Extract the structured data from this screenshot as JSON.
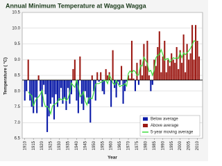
{
  "chart_data": {
    "type": "bar",
    "title": "Annual Minimum Temperature at Wagga Wagga",
    "x_label": "Year",
    "y_label": "Temperature ( °C)",
    "baseline": 8.35,
    "x": [
      1910,
      1911,
      1912,
      1913,
      1914,
      1915,
      1916,
      1917,
      1918,
      1919,
      1920,
      1921,
      1922,
      1923,
      1924,
      1925,
      1926,
      1927,
      1928,
      1929,
      1930,
      1931,
      1932,
      1933,
      1934,
      1935,
      1936,
      1937,
      1938,
      1939,
      1940,
      1941,
      1942,
      1943,
      1944,
      1945,
      1946,
      1947,
      1948,
      1949,
      1950,
      1951,
      1952,
      1953,
      1954,
      1955,
      1956,
      1957,
      1958,
      1959,
      1960,
      1961,
      1962,
      1963,
      1964,
      1965,
      1966,
      1967,
      1968,
      1969,
      1970,
      1971,
      1972,
      1973,
      1974,
      1975,
      1976,
      1977,
      1978,
      1979,
      1980,
      1981,
      1982,
      1983,
      1984,
      1985,
      1986,
      1987,
      1988,
      1989,
      1990,
      1991,
      1992,
      1993,
      1994,
      1995,
      1996,
      1997,
      1998,
      1999,
      2000,
      2001,
      2002,
      2003,
      2004,
      2005,
      2006,
      2007,
      2008,
      2009,
      2010,
      2011
    ],
    "series": [
      {
        "name": "Below average",
        "color": "#0a1aa8",
        "kind": "bar",
        "values": [
          7.7,
          8.0,
          null,
          7.7,
          7.5,
          7.3,
          7.8,
          7.3,
          null,
          8.0,
          7.5,
          8.2,
          7.9,
          6.7,
          7.2,
          7.6,
          7.8,
          7.1,
          7.9,
          7.5,
          7.7,
          8.1,
          7.6,
          7.8,
          7.4,
          8.1,
          7.6,
          7.9,
          null,
          null,
          7.7,
          7.3,
          null,
          7.6,
          7.4,
          8.0,
          7.8,
          7.6,
          7.0,
          null,
          8.0,
          7.7,
          null,
          8.3,
          null,
          8.0,
          7.9,
          null,
          null,
          null,
          7.5,
          null,
          8.1,
          7.8,
          8.3,
          8.2,
          null,
          7.6,
          8.0,
          8.3,
          null,
          null,
          null,
          null,
          8.0,
          null,
          8.2,
          null,
          null,
          null,
          null,
          null,
          null,
          8.0,
          8.2,
          null,
          null,
          null,
          null,
          null,
          null,
          null,
          null,
          null,
          null,
          null,
          null,
          null,
          null,
          null,
          null,
          null,
          null,
          null,
          null,
          null,
          null,
          null,
          null,
          null,
          null,
          null
        ]
      },
      {
        "name": "Above average",
        "color": "#9c1a14",
        "kind": "bar",
        "values": [
          null,
          null,
          9.0,
          null,
          null,
          null,
          null,
          null,
          8.5,
          null,
          null,
          null,
          null,
          null,
          null,
          null,
          null,
          null,
          null,
          null,
          null,
          null,
          null,
          null,
          null,
          null,
          null,
          null,
          8.7,
          9.0,
          null,
          null,
          9.1,
          null,
          null,
          null,
          null,
          null,
          null,
          8.5,
          null,
          null,
          8.6,
          null,
          8.6,
          null,
          null,
          8.7,
          8.5,
          8.6,
          null,
          9.3,
          null,
          null,
          null,
          null,
          8.8,
          null,
          null,
          null,
          8.5,
          8.4,
          9.6,
          8.4,
          null,
          8.9,
          null,
          9.0,
          8.5,
          9.5,
          8.8,
          9.6,
          8.5,
          null,
          null,
          9.0,
          8.8,
          9.4,
          9.9,
          8.6,
          9.1,
          9.6,
          8.6,
          9.0,
          8.8,
          9.2,
          9.0,
          8.9,
          9.4,
          8.7,
          9.3,
          8.9,
          9.8,
          8.6,
          9.5,
          9.0,
          9.2,
          10.1,
          9.0,
          10.1,
          9.6,
          9.1
        ]
      },
      {
        "name": "5-year moving average",
        "color": "#3ddc3d",
        "kind": "line",
        "values": [
          null,
          null,
          7.98,
          7.9,
          7.86,
          7.52,
          7.68,
          7.78,
          7.82,
          7.9,
          8.02,
          7.66,
          7.5,
          7.52,
          7.44,
          7.28,
          7.52,
          7.58,
          7.6,
          7.66,
          7.76,
          7.74,
          7.72,
          7.8,
          7.7,
          7.76,
          7.94,
          8.26,
          8.18,
          8.12,
          8.36,
          8.14,
          7.82,
          7.88,
          7.98,
          7.68,
          7.56,
          7.78,
          7.78,
          7.76,
          7.96,
          8.22,
          8.24,
          8.24,
          8.28,
          8.3,
          8.34,
          8.34,
          8.24,
          8.52,
          8.4,
          8.26,
          8.2,
          8.34,
          8.24,
          8.14,
          8.18,
          8.18,
          8.24,
          8.16,
          8.56,
          8.64,
          8.58,
          8.66,
          8.62,
          8.5,
          8.52,
          8.82,
          8.8,
          9.08,
          8.98,
          8.88,
          8.62,
          8.66,
          8.5,
          8.68,
          9.06,
          9.14,
          9.16,
          9.32,
          9.16,
          8.98,
          9.02,
          9.04,
          8.92,
          8.98,
          9.06,
          9.04,
          9.06,
          9.04,
          9.22,
          9.06,
          9.22,
          9.16,
          9.22,
          9.28,
          9.36,
          9.48,
          9.6,
          9.58,
          null,
          null
        ]
      }
    ],
    "xlim": [
      1908.5,
      2013
    ],
    "xticks": [
      1910,
      1915,
      1920,
      1925,
      1930,
      1935,
      1940,
      1945,
      1950,
      1955,
      1960,
      1965,
      1970,
      1975,
      1980,
      1985,
      1990,
      1995,
      2000,
      2005,
      2010
    ],
    "ylim": [
      6.5,
      10.5
    ],
    "yticks": [
      6.5,
      {
        "value": 7,
        "label": "7.0"
      },
      7.5,
      {
        "value": 8,
        "label": "8.0"
      },
      8.5,
      {
        "value": 9,
        "label": "9.0"
      },
      9.5,
      {
        "value": 10,
        "label": "10.0"
      },
      10.5
    ],
    "grid": true,
    "legend": "lower-right"
  }
}
